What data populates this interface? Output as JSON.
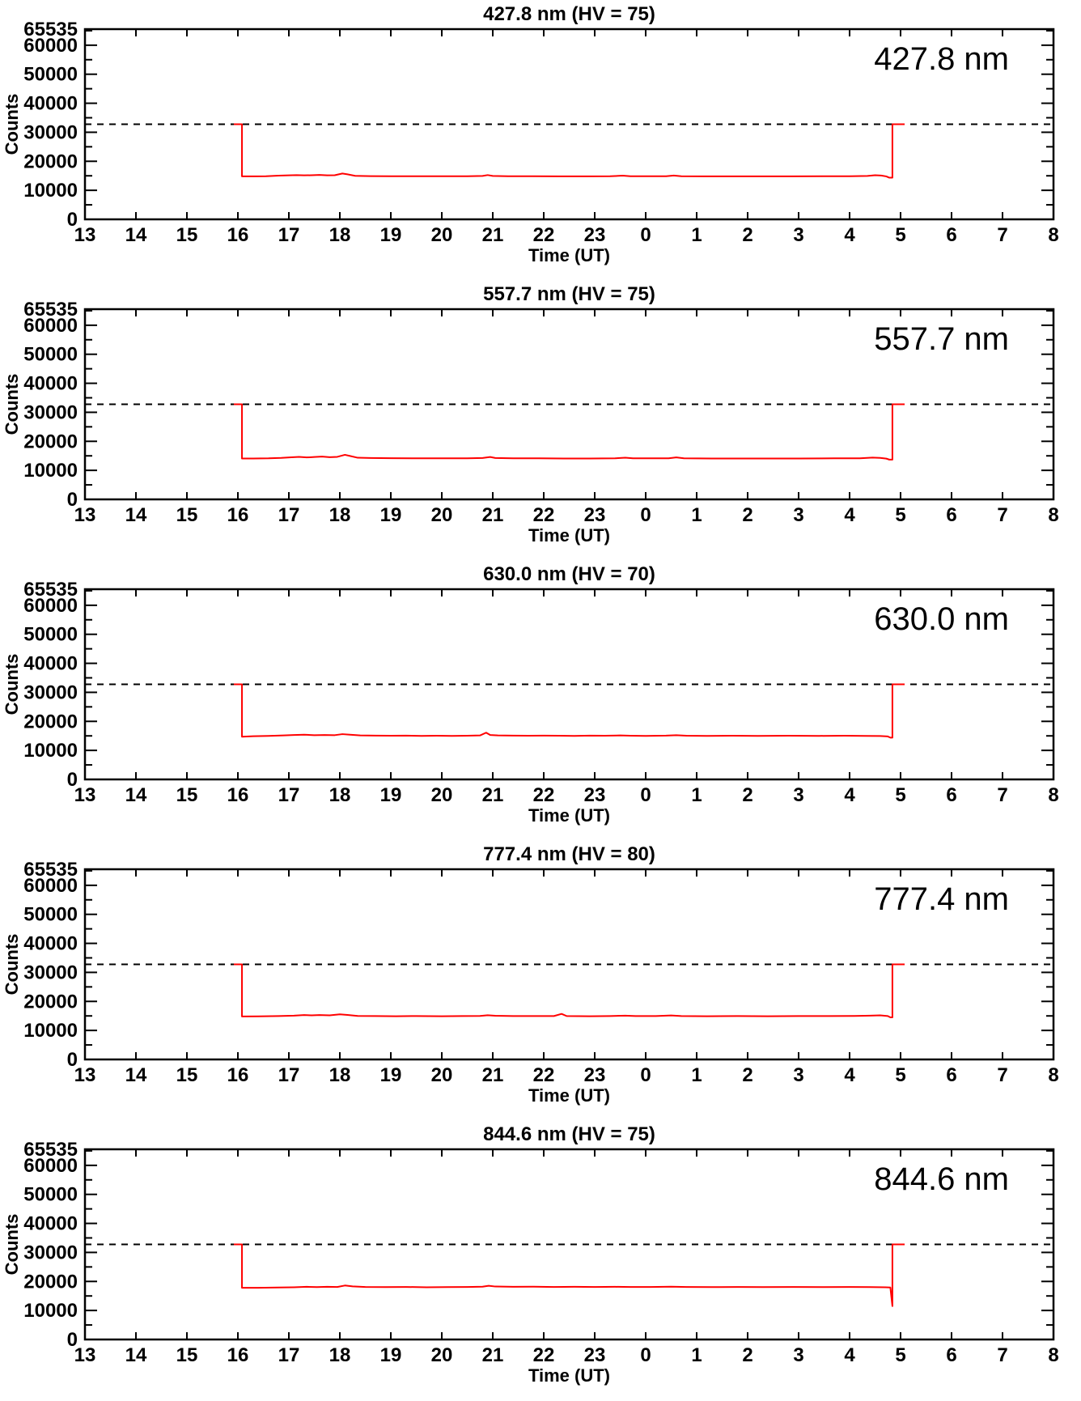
{
  "chart_data": {
    "type": "line",
    "xlabel": "Time (UT)",
    "ylabel": "Counts",
    "xlim": [
      13,
      32
    ],
    "ylim": [
      0,
      65535
    ],
    "x_tick_values": [
      13,
      14,
      15,
      16,
      17,
      18,
      19,
      20,
      21,
      22,
      23,
      24,
      25,
      26,
      27,
      28,
      29,
      30,
      31,
      32
    ],
    "x_tick_labels": [
      "13",
      "14",
      "15",
      "16",
      "17",
      "18",
      "19",
      "20",
      "21",
      "22",
      "23",
      "0",
      "1",
      "2",
      "3",
      "4",
      "5",
      "6",
      "7",
      "8"
    ],
    "y_tick_values": [
      0,
      10000,
      20000,
      30000,
      40000,
      50000,
      60000
    ],
    "y_tick_labels": [
      "0",
      "10000",
      "20000",
      "30000",
      "40000",
      "50000",
      "60000"
    ],
    "y_minor_tick_values": [
      5000,
      15000,
      25000,
      35000,
      45000,
      55000,
      65000
    ],
    "y_top_label": "65535",
    "dashed_line_value": 32767,
    "colors": {
      "line": "#ff0000",
      "axis": "#000000",
      "background": "#ffffff",
      "dashed": "#000000"
    },
    "legend_position": "none",
    "grid": false,
    "panels": [
      {
        "title": "427.8 nm (HV = 75)",
        "annotation": "427.8 nm",
        "series": [
          [
            15.92,
            32767
          ],
          [
            16.08,
            32767
          ],
          [
            16.08,
            14800
          ],
          [
            16.3,
            14800
          ],
          [
            16.55,
            14850
          ],
          [
            16.8,
            15050
          ],
          [
            17.0,
            15150
          ],
          [
            17.15,
            15250
          ],
          [
            17.3,
            15150
          ],
          [
            17.45,
            15200
          ],
          [
            17.6,
            15300
          ],
          [
            17.75,
            15150
          ],
          [
            17.9,
            15200
          ],
          [
            18.05,
            15800
          ],
          [
            18.15,
            15500
          ],
          [
            18.3,
            15000
          ],
          [
            18.6,
            14900
          ],
          [
            19.0,
            14850
          ],
          [
            19.5,
            14850
          ],
          [
            20.0,
            14850
          ],
          [
            20.5,
            14850
          ],
          [
            20.8,
            14950
          ],
          [
            20.9,
            15250
          ],
          [
            21.0,
            14950
          ],
          [
            21.3,
            14850
          ],
          [
            21.8,
            14850
          ],
          [
            22.3,
            14800
          ],
          [
            22.8,
            14800
          ],
          [
            23.3,
            14850
          ],
          [
            23.55,
            15050
          ],
          [
            23.7,
            14850
          ],
          [
            24.0,
            14850
          ],
          [
            24.4,
            14850
          ],
          [
            24.55,
            15100
          ],
          [
            24.7,
            14850
          ],
          [
            25.2,
            14800
          ],
          [
            26.0,
            14800
          ],
          [
            26.8,
            14800
          ],
          [
            27.5,
            14850
          ],
          [
            28.0,
            14850
          ],
          [
            28.35,
            14950
          ],
          [
            28.5,
            15200
          ],
          [
            28.62,
            15100
          ],
          [
            28.72,
            14800
          ],
          [
            28.78,
            14350
          ],
          [
            28.84,
            14350
          ],
          [
            28.84,
            32767
          ],
          [
            29.08,
            32767
          ]
        ]
      },
      {
        "title": "557.7 nm (HV = 75)",
        "annotation": "557.7 nm",
        "series": [
          [
            15.92,
            32767
          ],
          [
            16.08,
            32767
          ],
          [
            16.08,
            14100
          ],
          [
            16.3,
            14100
          ],
          [
            16.6,
            14150
          ],
          [
            16.85,
            14300
          ],
          [
            17.05,
            14500
          ],
          [
            17.2,
            14650
          ],
          [
            17.35,
            14450
          ],
          [
            17.5,
            14600
          ],
          [
            17.65,
            14750
          ],
          [
            17.8,
            14550
          ],
          [
            17.95,
            14650
          ],
          [
            18.1,
            15350
          ],
          [
            18.2,
            14950
          ],
          [
            18.35,
            14350
          ],
          [
            18.6,
            14250
          ],
          [
            19.0,
            14200
          ],
          [
            19.5,
            14150
          ],
          [
            20.0,
            14150
          ],
          [
            20.5,
            14150
          ],
          [
            20.8,
            14250
          ],
          [
            20.95,
            14600
          ],
          [
            21.05,
            14250
          ],
          [
            21.4,
            14150
          ],
          [
            21.9,
            14150
          ],
          [
            22.4,
            14100
          ],
          [
            22.9,
            14100
          ],
          [
            23.4,
            14150
          ],
          [
            23.6,
            14350
          ],
          [
            23.75,
            14150
          ],
          [
            24.1,
            14150
          ],
          [
            24.45,
            14150
          ],
          [
            24.6,
            14450
          ],
          [
            24.75,
            14150
          ],
          [
            25.3,
            14100
          ],
          [
            26.1,
            14100
          ],
          [
            27.0,
            14100
          ],
          [
            27.7,
            14150
          ],
          [
            28.2,
            14150
          ],
          [
            28.45,
            14400
          ],
          [
            28.6,
            14300
          ],
          [
            28.72,
            14050
          ],
          [
            28.78,
            13700
          ],
          [
            28.84,
            13700
          ],
          [
            28.84,
            32767
          ],
          [
            29.08,
            32767
          ]
        ]
      },
      {
        "title": "630.0 nm (HV = 70)",
        "annotation": "630.0 nm",
        "series": [
          [
            15.92,
            32767
          ],
          [
            16.08,
            32767
          ],
          [
            16.08,
            14700
          ],
          [
            16.3,
            14900
          ],
          [
            16.6,
            15000
          ],
          [
            16.9,
            15150
          ],
          [
            17.1,
            15300
          ],
          [
            17.3,
            15400
          ],
          [
            17.5,
            15250
          ],
          [
            17.7,
            15300
          ],
          [
            17.9,
            15250
          ],
          [
            18.05,
            15600
          ],
          [
            18.2,
            15400
          ],
          [
            18.4,
            15150
          ],
          [
            18.7,
            15100
          ],
          [
            19.0,
            15050
          ],
          [
            19.3,
            15100
          ],
          [
            19.6,
            15000
          ],
          [
            19.9,
            15050
          ],
          [
            20.2,
            15000
          ],
          [
            20.5,
            15050
          ],
          [
            20.75,
            15150
          ],
          [
            20.87,
            16100
          ],
          [
            20.95,
            15300
          ],
          [
            21.1,
            15150
          ],
          [
            21.4,
            15100
          ],
          [
            21.7,
            15050
          ],
          [
            22.0,
            15100
          ],
          [
            22.3,
            15050
          ],
          [
            22.6,
            15000
          ],
          [
            22.9,
            15100
          ],
          [
            23.2,
            15050
          ],
          [
            23.5,
            15150
          ],
          [
            23.7,
            15050
          ],
          [
            24.0,
            15000
          ],
          [
            24.4,
            15100
          ],
          [
            24.6,
            15250
          ],
          [
            24.8,
            15050
          ],
          [
            25.2,
            15000
          ],
          [
            25.7,
            15050
          ],
          [
            26.2,
            15000
          ],
          [
            26.8,
            15050
          ],
          [
            27.4,
            15000
          ],
          [
            27.9,
            15050
          ],
          [
            28.3,
            15000
          ],
          [
            28.6,
            14950
          ],
          [
            28.75,
            14800
          ],
          [
            28.8,
            14400
          ],
          [
            28.84,
            14400
          ],
          [
            28.84,
            32767
          ],
          [
            29.08,
            32767
          ]
        ]
      },
      {
        "title": "777.4 nm (HV = 80)",
        "annotation": "777.4 nm",
        "series": [
          [
            15.92,
            32767
          ],
          [
            16.08,
            32767
          ],
          [
            16.08,
            14800
          ],
          [
            16.4,
            14850
          ],
          [
            16.8,
            14950
          ],
          [
            17.1,
            15100
          ],
          [
            17.3,
            15300
          ],
          [
            17.45,
            15200
          ],
          [
            17.6,
            15300
          ],
          [
            17.8,
            15200
          ],
          [
            18.0,
            15550
          ],
          [
            18.15,
            15350
          ],
          [
            18.35,
            15000
          ],
          [
            18.7,
            14950
          ],
          [
            19.1,
            14900
          ],
          [
            19.5,
            14950
          ],
          [
            20.0,
            14900
          ],
          [
            20.4,
            14950
          ],
          [
            20.75,
            15000
          ],
          [
            20.9,
            15250
          ],
          [
            21.05,
            15050
          ],
          [
            21.4,
            14950
          ],
          [
            21.8,
            14950
          ],
          [
            22.2,
            14950
          ],
          [
            22.35,
            15700
          ],
          [
            22.45,
            14950
          ],
          [
            22.9,
            14900
          ],
          [
            23.3,
            14950
          ],
          [
            23.6,
            15100
          ],
          [
            23.8,
            14950
          ],
          [
            24.2,
            14950
          ],
          [
            24.5,
            15150
          ],
          [
            24.7,
            14950
          ],
          [
            25.2,
            14900
          ],
          [
            25.8,
            14950
          ],
          [
            26.4,
            14900
          ],
          [
            27.0,
            14950
          ],
          [
            27.6,
            14950
          ],
          [
            28.1,
            15000
          ],
          [
            28.4,
            15100
          ],
          [
            28.6,
            15200
          ],
          [
            28.75,
            14950
          ],
          [
            28.8,
            14500
          ],
          [
            28.84,
            14500
          ],
          [
            28.84,
            32767
          ],
          [
            29.08,
            32767
          ]
        ]
      },
      {
        "title": "844.6 nm (HV = 75)",
        "annotation": "844.6 nm",
        "series": [
          [
            15.92,
            32767
          ],
          [
            16.08,
            32767
          ],
          [
            16.08,
            17800
          ],
          [
            16.4,
            17800
          ],
          [
            16.8,
            17900
          ],
          [
            17.1,
            18000
          ],
          [
            17.35,
            18150
          ],
          [
            17.55,
            18050
          ],
          [
            17.75,
            18150
          ],
          [
            17.95,
            18100
          ],
          [
            18.1,
            18600
          ],
          [
            18.25,
            18300
          ],
          [
            18.5,
            18100
          ],
          [
            18.9,
            18050
          ],
          [
            19.3,
            18100
          ],
          [
            19.7,
            18000
          ],
          [
            20.1,
            18050
          ],
          [
            20.5,
            18100
          ],
          [
            20.8,
            18200
          ],
          [
            20.92,
            18500
          ],
          [
            21.05,
            18250
          ],
          [
            21.4,
            18150
          ],
          [
            21.8,
            18200
          ],
          [
            22.2,
            18100
          ],
          [
            22.6,
            18150
          ],
          [
            23.0,
            18100
          ],
          [
            23.4,
            18150
          ],
          [
            23.7,
            18100
          ],
          [
            24.1,
            18100
          ],
          [
            24.5,
            18200
          ],
          [
            24.8,
            18100
          ],
          [
            25.3,
            18050
          ],
          [
            25.8,
            18100
          ],
          [
            26.3,
            18050
          ],
          [
            26.9,
            18100
          ],
          [
            27.5,
            18050
          ],
          [
            28.0,
            18100
          ],
          [
            28.4,
            18050
          ],
          [
            28.7,
            18000
          ],
          [
            28.8,
            17900
          ],
          [
            28.84,
            11500
          ],
          [
            28.84,
            32767
          ],
          [
            29.08,
            32767
          ]
        ]
      }
    ]
  }
}
